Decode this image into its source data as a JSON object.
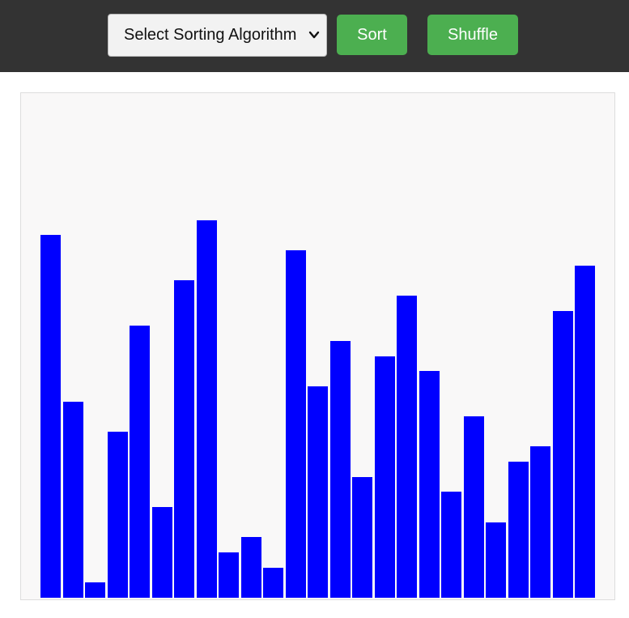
{
  "toolbar": {
    "algorithm_select": {
      "selected": "Select Sorting Algorithm"
    },
    "sort_label": "Sort",
    "shuffle_label": "Shuffle",
    "icons": {
      "select_arrow": "chevron-down-icon"
    }
  },
  "colors": {
    "toolbar_bg": "#333333",
    "button_bg": "#4caf50",
    "bar": "#0000ff",
    "canvas_bg": "#f9f8f8"
  },
  "chart_data": {
    "type": "bar",
    "values": [
      24,
      13,
      1,
      11,
      18,
      6,
      21,
      25,
      3,
      4,
      2,
      23,
      14,
      17,
      8,
      16,
      20,
      15,
      7,
      12,
      5,
      9,
      10,
      19,
      22
    ],
    "ylim": [
      0,
      33.4
    ],
    "grid": false
  }
}
